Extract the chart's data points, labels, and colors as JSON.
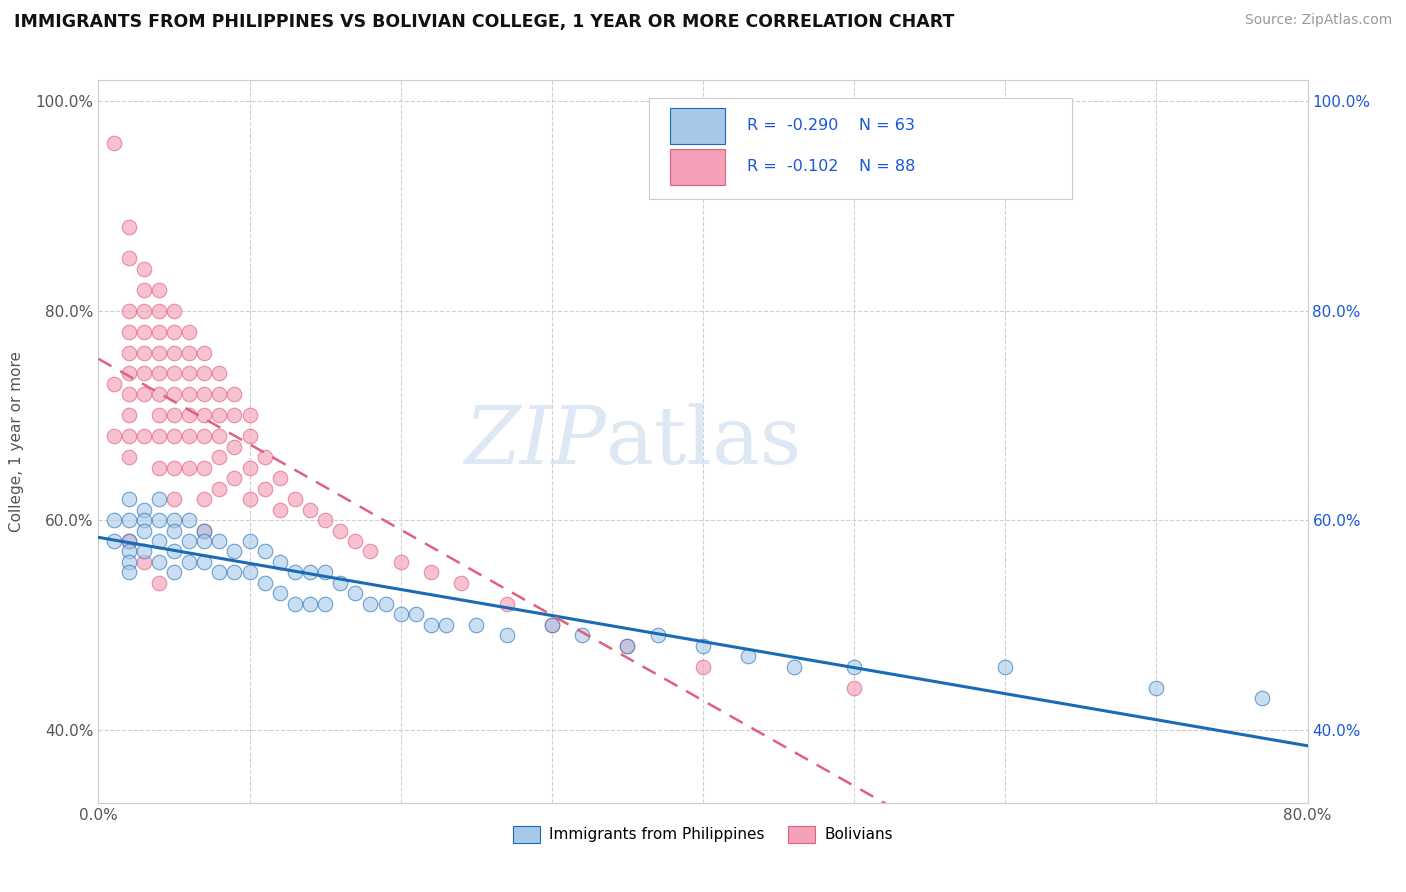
{
  "title": "IMMIGRANTS FROM PHILIPPINES VS BOLIVIAN COLLEGE, 1 YEAR OR MORE CORRELATION CHART",
  "source": "Source: ZipAtlas.com",
  "ylabel": "College, 1 year or more",
  "watermark_zip": "ZIP",
  "watermark_atlas": "atlas",
  "xlim": [
    0.0,
    0.8
  ],
  "ylim": [
    0.33,
    1.02
  ],
  "xticks": [
    0.0,
    0.1,
    0.2,
    0.3,
    0.4,
    0.5,
    0.6,
    0.7,
    0.8
  ],
  "xticklabels": [
    "0.0%",
    "",
    "",
    "",
    "",
    "",
    "",
    "",
    "80.0%"
  ],
  "yticks": [
    0.4,
    0.6,
    0.8,
    1.0
  ],
  "yticklabels_left": [
    "40.0%",
    "60.0%",
    "80.0%",
    "100.0%"
  ],
  "yticklabels_right": [
    "40.0%",
    "60.0%",
    "80.0%",
    "100.0%"
  ],
  "legend_r1": "R = -0.290",
  "legend_n1": "N = 63",
  "legend_r2": "R = -0.102",
  "legend_n2": "N = 88",
  "color_blue": "#a8c8e8",
  "color_pink": "#f4a0b8",
  "color_blue_line": "#1a6bb5",
  "color_pink_line": "#e06080",
  "color_text_blue": "#1a56db",
  "background": "#ffffff",
  "grid_color": "#d0d0d0",
  "philippines_x": [
    0.01,
    0.01,
    0.02,
    0.02,
    0.02,
    0.02,
    0.02,
    0.02,
    0.03,
    0.03,
    0.03,
    0.03,
    0.04,
    0.04,
    0.04,
    0.04,
    0.05,
    0.05,
    0.05,
    0.05,
    0.06,
    0.06,
    0.06,
    0.07,
    0.07,
    0.07,
    0.08,
    0.08,
    0.09,
    0.09,
    0.1,
    0.1,
    0.11,
    0.11,
    0.12,
    0.12,
    0.13,
    0.13,
    0.14,
    0.14,
    0.15,
    0.15,
    0.16,
    0.17,
    0.18,
    0.19,
    0.2,
    0.21,
    0.22,
    0.23,
    0.25,
    0.27,
    0.3,
    0.32,
    0.35,
    0.37,
    0.4,
    0.43,
    0.46,
    0.5,
    0.6,
    0.7,
    0.77
  ],
  "philippines_y": [
    0.6,
    0.58,
    0.62,
    0.6,
    0.58,
    0.57,
    0.56,
    0.55,
    0.61,
    0.6,
    0.59,
    0.57,
    0.62,
    0.6,
    0.58,
    0.56,
    0.6,
    0.59,
    0.57,
    0.55,
    0.6,
    0.58,
    0.56,
    0.59,
    0.58,
    0.56,
    0.58,
    0.55,
    0.57,
    0.55,
    0.58,
    0.55,
    0.57,
    0.54,
    0.56,
    0.53,
    0.55,
    0.52,
    0.55,
    0.52,
    0.55,
    0.52,
    0.54,
    0.53,
    0.52,
    0.52,
    0.51,
    0.51,
    0.5,
    0.5,
    0.5,
    0.49,
    0.5,
    0.49,
    0.48,
    0.49,
    0.48,
    0.47,
    0.46,
    0.46,
    0.46,
    0.44,
    0.43
  ],
  "bolivian_x": [
    0.01,
    0.01,
    0.01,
    0.02,
    0.02,
    0.02,
    0.02,
    0.02,
    0.02,
    0.02,
    0.02,
    0.02,
    0.03,
    0.03,
    0.03,
    0.03,
    0.03,
    0.03,
    0.03,
    0.04,
    0.04,
    0.04,
    0.04,
    0.04,
    0.04,
    0.04,
    0.04,
    0.05,
    0.05,
    0.05,
    0.05,
    0.05,
    0.05,
    0.05,
    0.05,
    0.06,
    0.06,
    0.06,
    0.06,
    0.06,
    0.06,
    0.07,
    0.07,
    0.07,
    0.07,
    0.07,
    0.07,
    0.07,
    0.08,
    0.08,
    0.08,
    0.08,
    0.08,
    0.09,
    0.09,
    0.09,
    0.1,
    0.1,
    0.1,
    0.11,
    0.11,
    0.12,
    0.12,
    0.13,
    0.14,
    0.15,
    0.16,
    0.17,
    0.18,
    0.2,
    0.22,
    0.24,
    0.27,
    0.3,
    0.35,
    0.4,
    0.5,
    0.02,
    0.03,
    0.04,
    0.05,
    0.06,
    0.07,
    0.08,
    0.09,
    0.1,
    0.02,
    0.03,
    0.04
  ],
  "bolivian_y": [
    0.96,
    0.73,
    0.68,
    0.85,
    0.8,
    0.78,
    0.76,
    0.74,
    0.72,
    0.7,
    0.68,
    0.66,
    0.82,
    0.8,
    0.78,
    0.76,
    0.74,
    0.72,
    0.68,
    0.8,
    0.78,
    0.76,
    0.74,
    0.72,
    0.7,
    0.68,
    0.65,
    0.78,
    0.76,
    0.74,
    0.72,
    0.7,
    0.68,
    0.65,
    0.62,
    0.76,
    0.74,
    0.72,
    0.7,
    0.68,
    0.65,
    0.74,
    0.72,
    0.7,
    0.68,
    0.65,
    0.62,
    0.59,
    0.72,
    0.7,
    0.68,
    0.66,
    0.63,
    0.7,
    0.67,
    0.64,
    0.68,
    0.65,
    0.62,
    0.66,
    0.63,
    0.64,
    0.61,
    0.62,
    0.61,
    0.6,
    0.59,
    0.58,
    0.57,
    0.56,
    0.55,
    0.54,
    0.52,
    0.5,
    0.48,
    0.46,
    0.44,
    0.88,
    0.84,
    0.82,
    0.8,
    0.78,
    0.76,
    0.74,
    0.72,
    0.7,
    0.58,
    0.56,
    0.54
  ]
}
